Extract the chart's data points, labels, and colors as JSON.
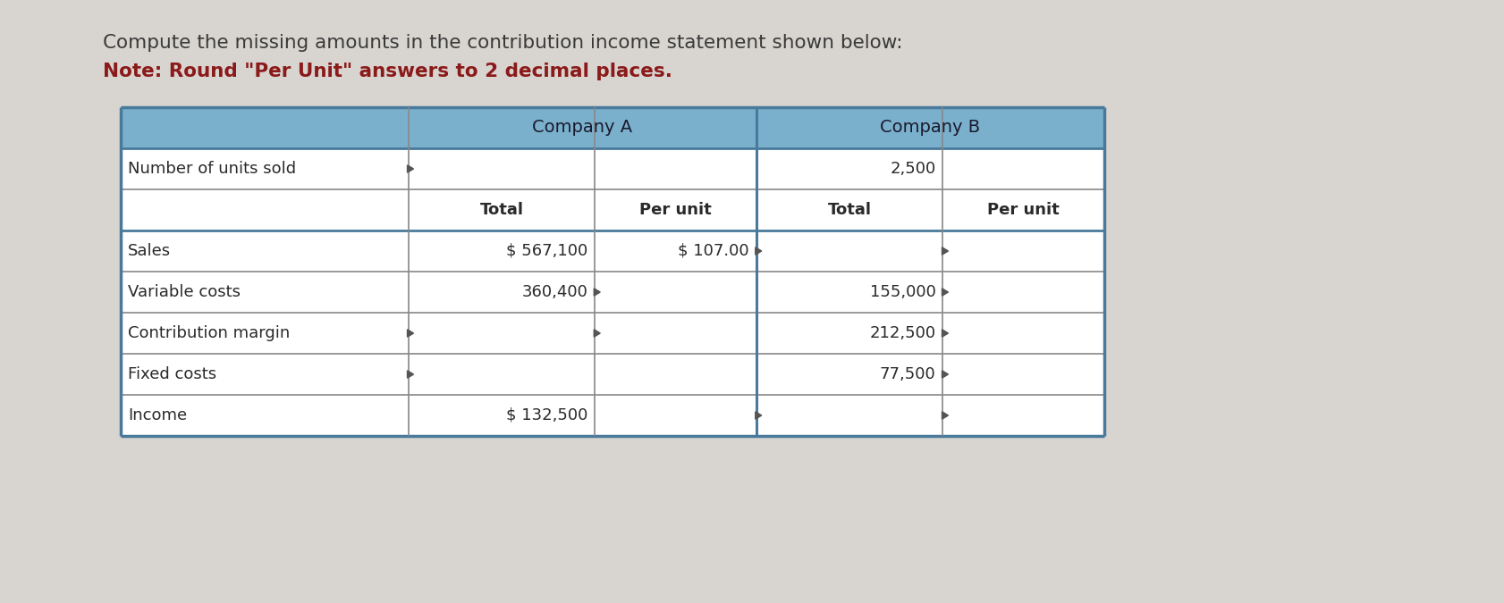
{
  "title_line1": "Compute the missing amounts in the contribution income statement shown below:",
  "title_line2": "Note: Round \"Per Unit\" answers to 2 decimal places.",
  "title_line1_color": "#3a3a3a",
  "title_line2_color": "#8b1a1a",
  "background_color": "#d8d5d0",
  "table_bg": "#ffffff",
  "header_bg": "#7ab0cc",
  "header_text_color": "#1a1a2e",
  "cell_text_color": "#2a2a2a",
  "border_color": "#4a7a9b",
  "inner_border_color": "#888888",
  "font_family": "DejaVu Sans",
  "title_fontsize": 15.5,
  "note_fontsize": 15.5,
  "header_fontsize": 14,
  "cell_fontsize": 13,
  "table_data": [
    [
      "Sales",
      "$ 567,100",
      "$ 107.00",
      "",
      ""
    ],
    [
      "Variable costs",
      "360,400",
      "",
      "155,000",
      ""
    ],
    [
      "Contribution margin",
      "",
      "",
      "212,500",
      ""
    ],
    [
      "Fixed costs",
      "",
      "",
      "77,500",
      ""
    ],
    [
      "Income",
      "$ 132,500",
      "",
      "",
      ""
    ]
  ]
}
